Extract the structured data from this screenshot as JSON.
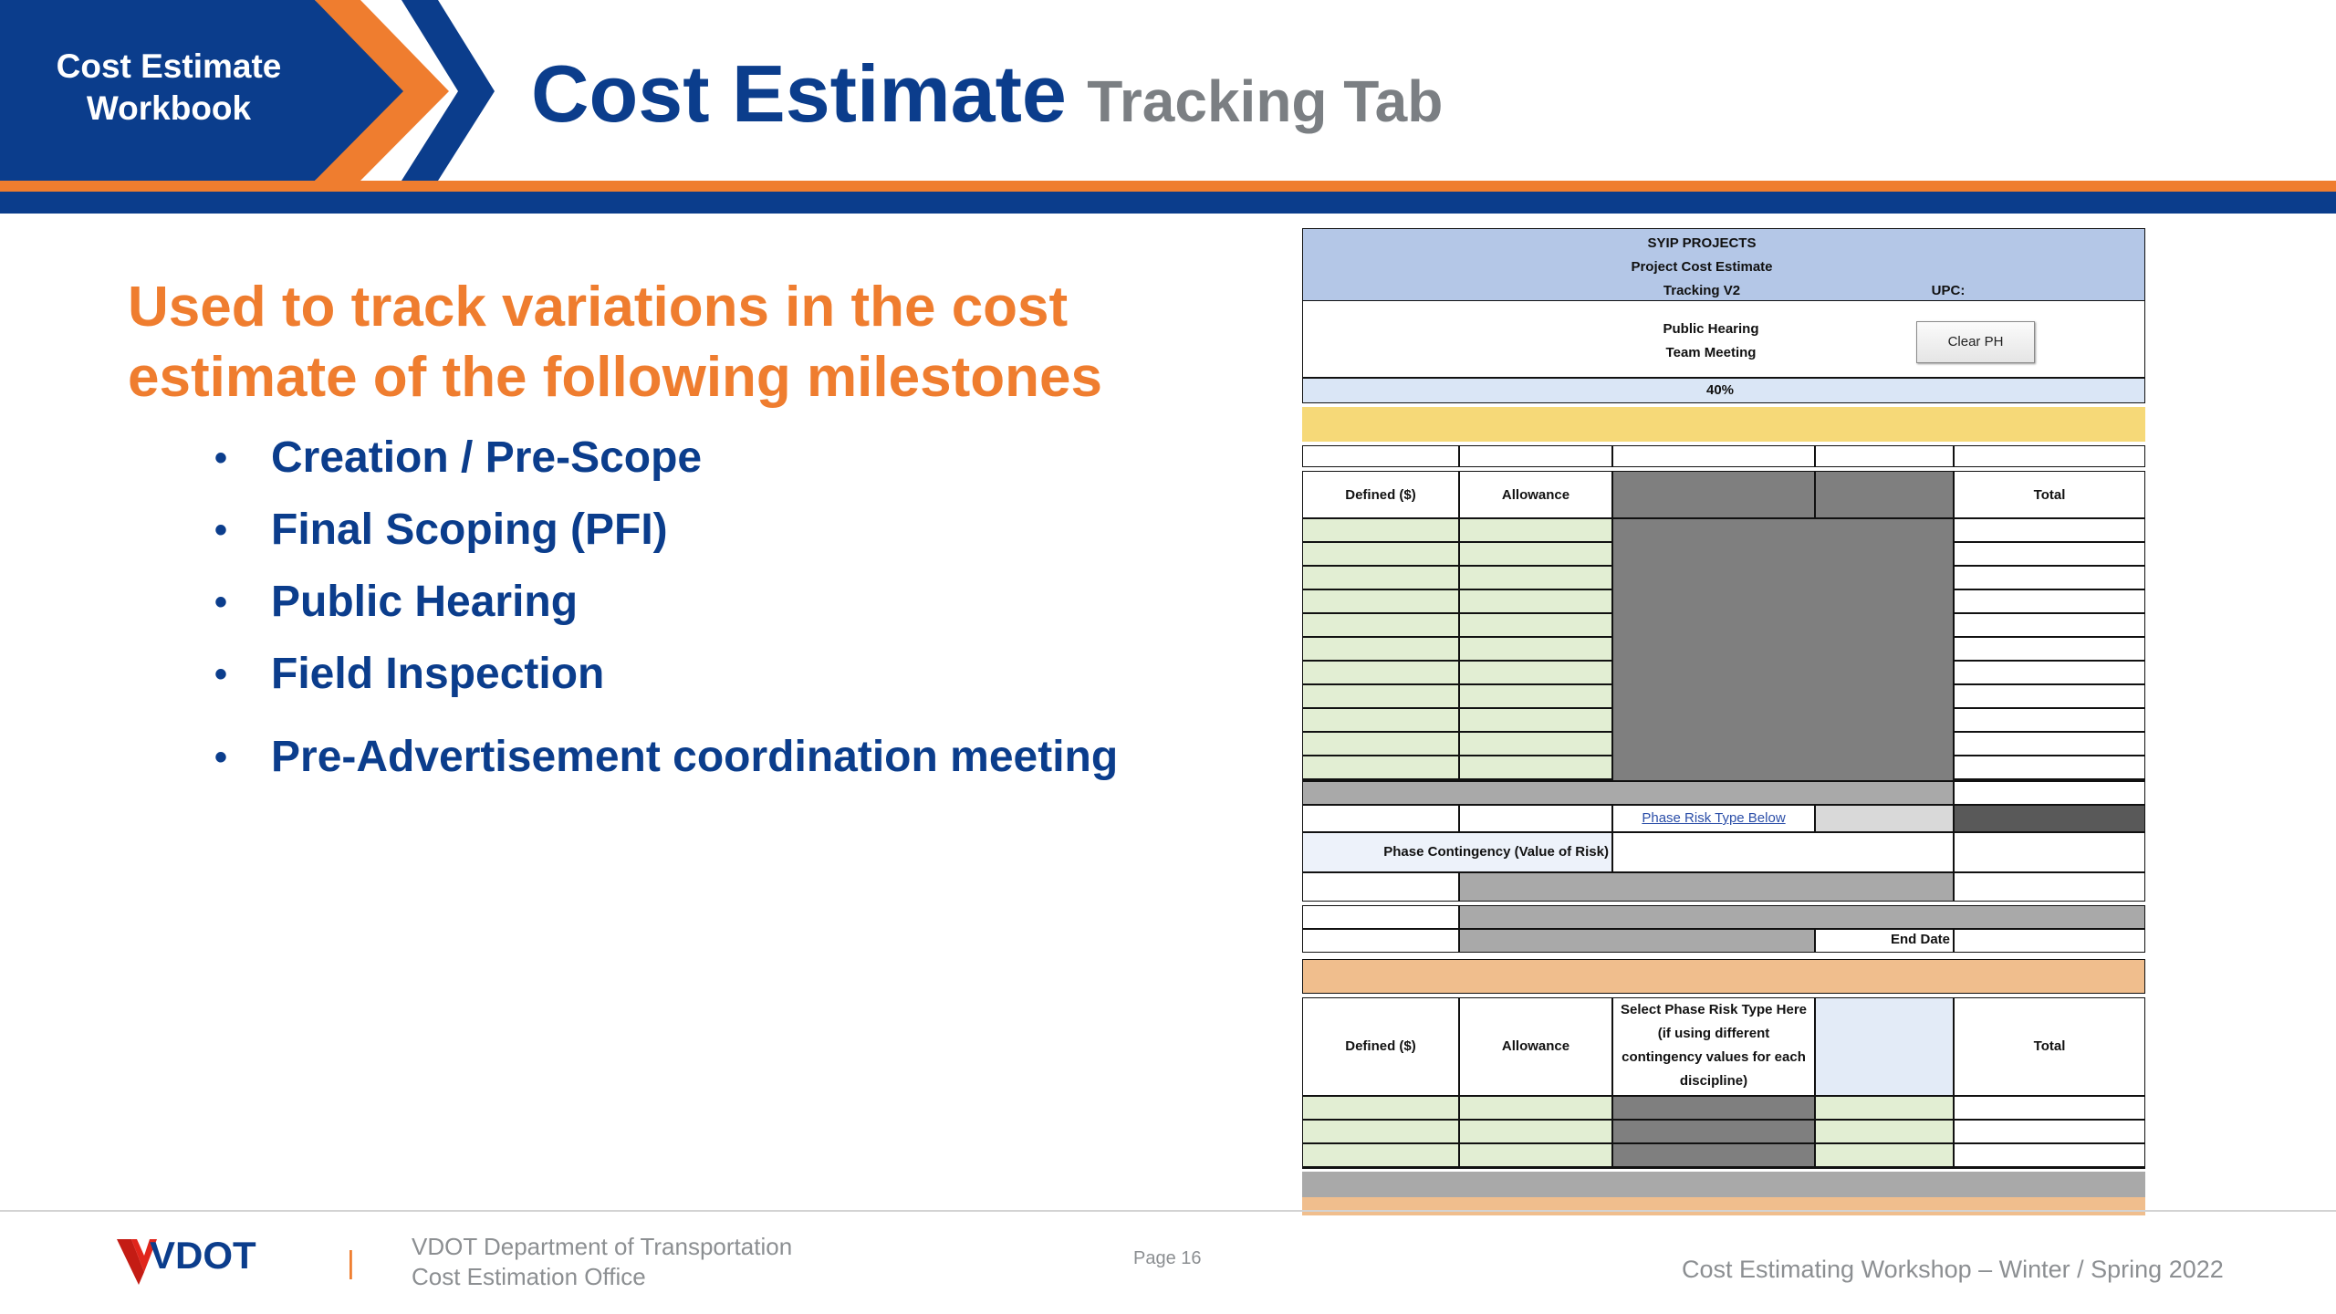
{
  "header": {
    "badge_line1": "Cost Estimate",
    "badge_line2": "Workbook",
    "title_main": "Cost Estimate",
    "title_sub": "Tracking Tab"
  },
  "lead": {
    "line1": "Used to track variations in the cost",
    "line2": "estimate of the following milestones"
  },
  "milestones": [
    "Creation / Pre-Scope",
    "Final Scoping (PFI)",
    "Public Hearing",
    "Field Inspection",
    "Pre-Advertisement coordination meeting"
  ],
  "sheet": {
    "header_line1": "SYIP PROJECTS",
    "header_line2": "Project Cost Estimate",
    "header_line3": "Tracking V2",
    "upc_label": "UPC:",
    "milestone_line1": "Public Hearing",
    "milestone_line2": "Team Meeting",
    "clear_button": "Clear PH",
    "percent": "40%",
    "col_defined": "Defined ($)",
    "col_allowance": "Allowance",
    "col_total": "Total",
    "phase_risk_link": "Phase Risk Type Below",
    "phase_contingency": "Phase Contingency  (Value of Risk)",
    "end_date": "End Date",
    "col2_defined": "Defined ($)",
    "col2_allowance": "Allowance",
    "select_risk_line1": "Select Phase Risk Type Here",
    "select_risk_line2": "(if using different",
    "select_risk_line3": "contingency values for each",
    "select_risk_line4": "discipline)",
    "col2_total": "Total"
  },
  "footer": {
    "logo_text": "VDOT",
    "dept_line1": "VDOT Department of Transportation",
    "dept_line2": "Cost Estimation Office",
    "page": "Page 16",
    "workshop": "Cost Estimating Workshop – Winter / Spring 2022"
  },
  "colors": {
    "navy": "#0b3d8c",
    "orange": "#ef7d2f",
    "gray_text": "#7b7f83"
  }
}
